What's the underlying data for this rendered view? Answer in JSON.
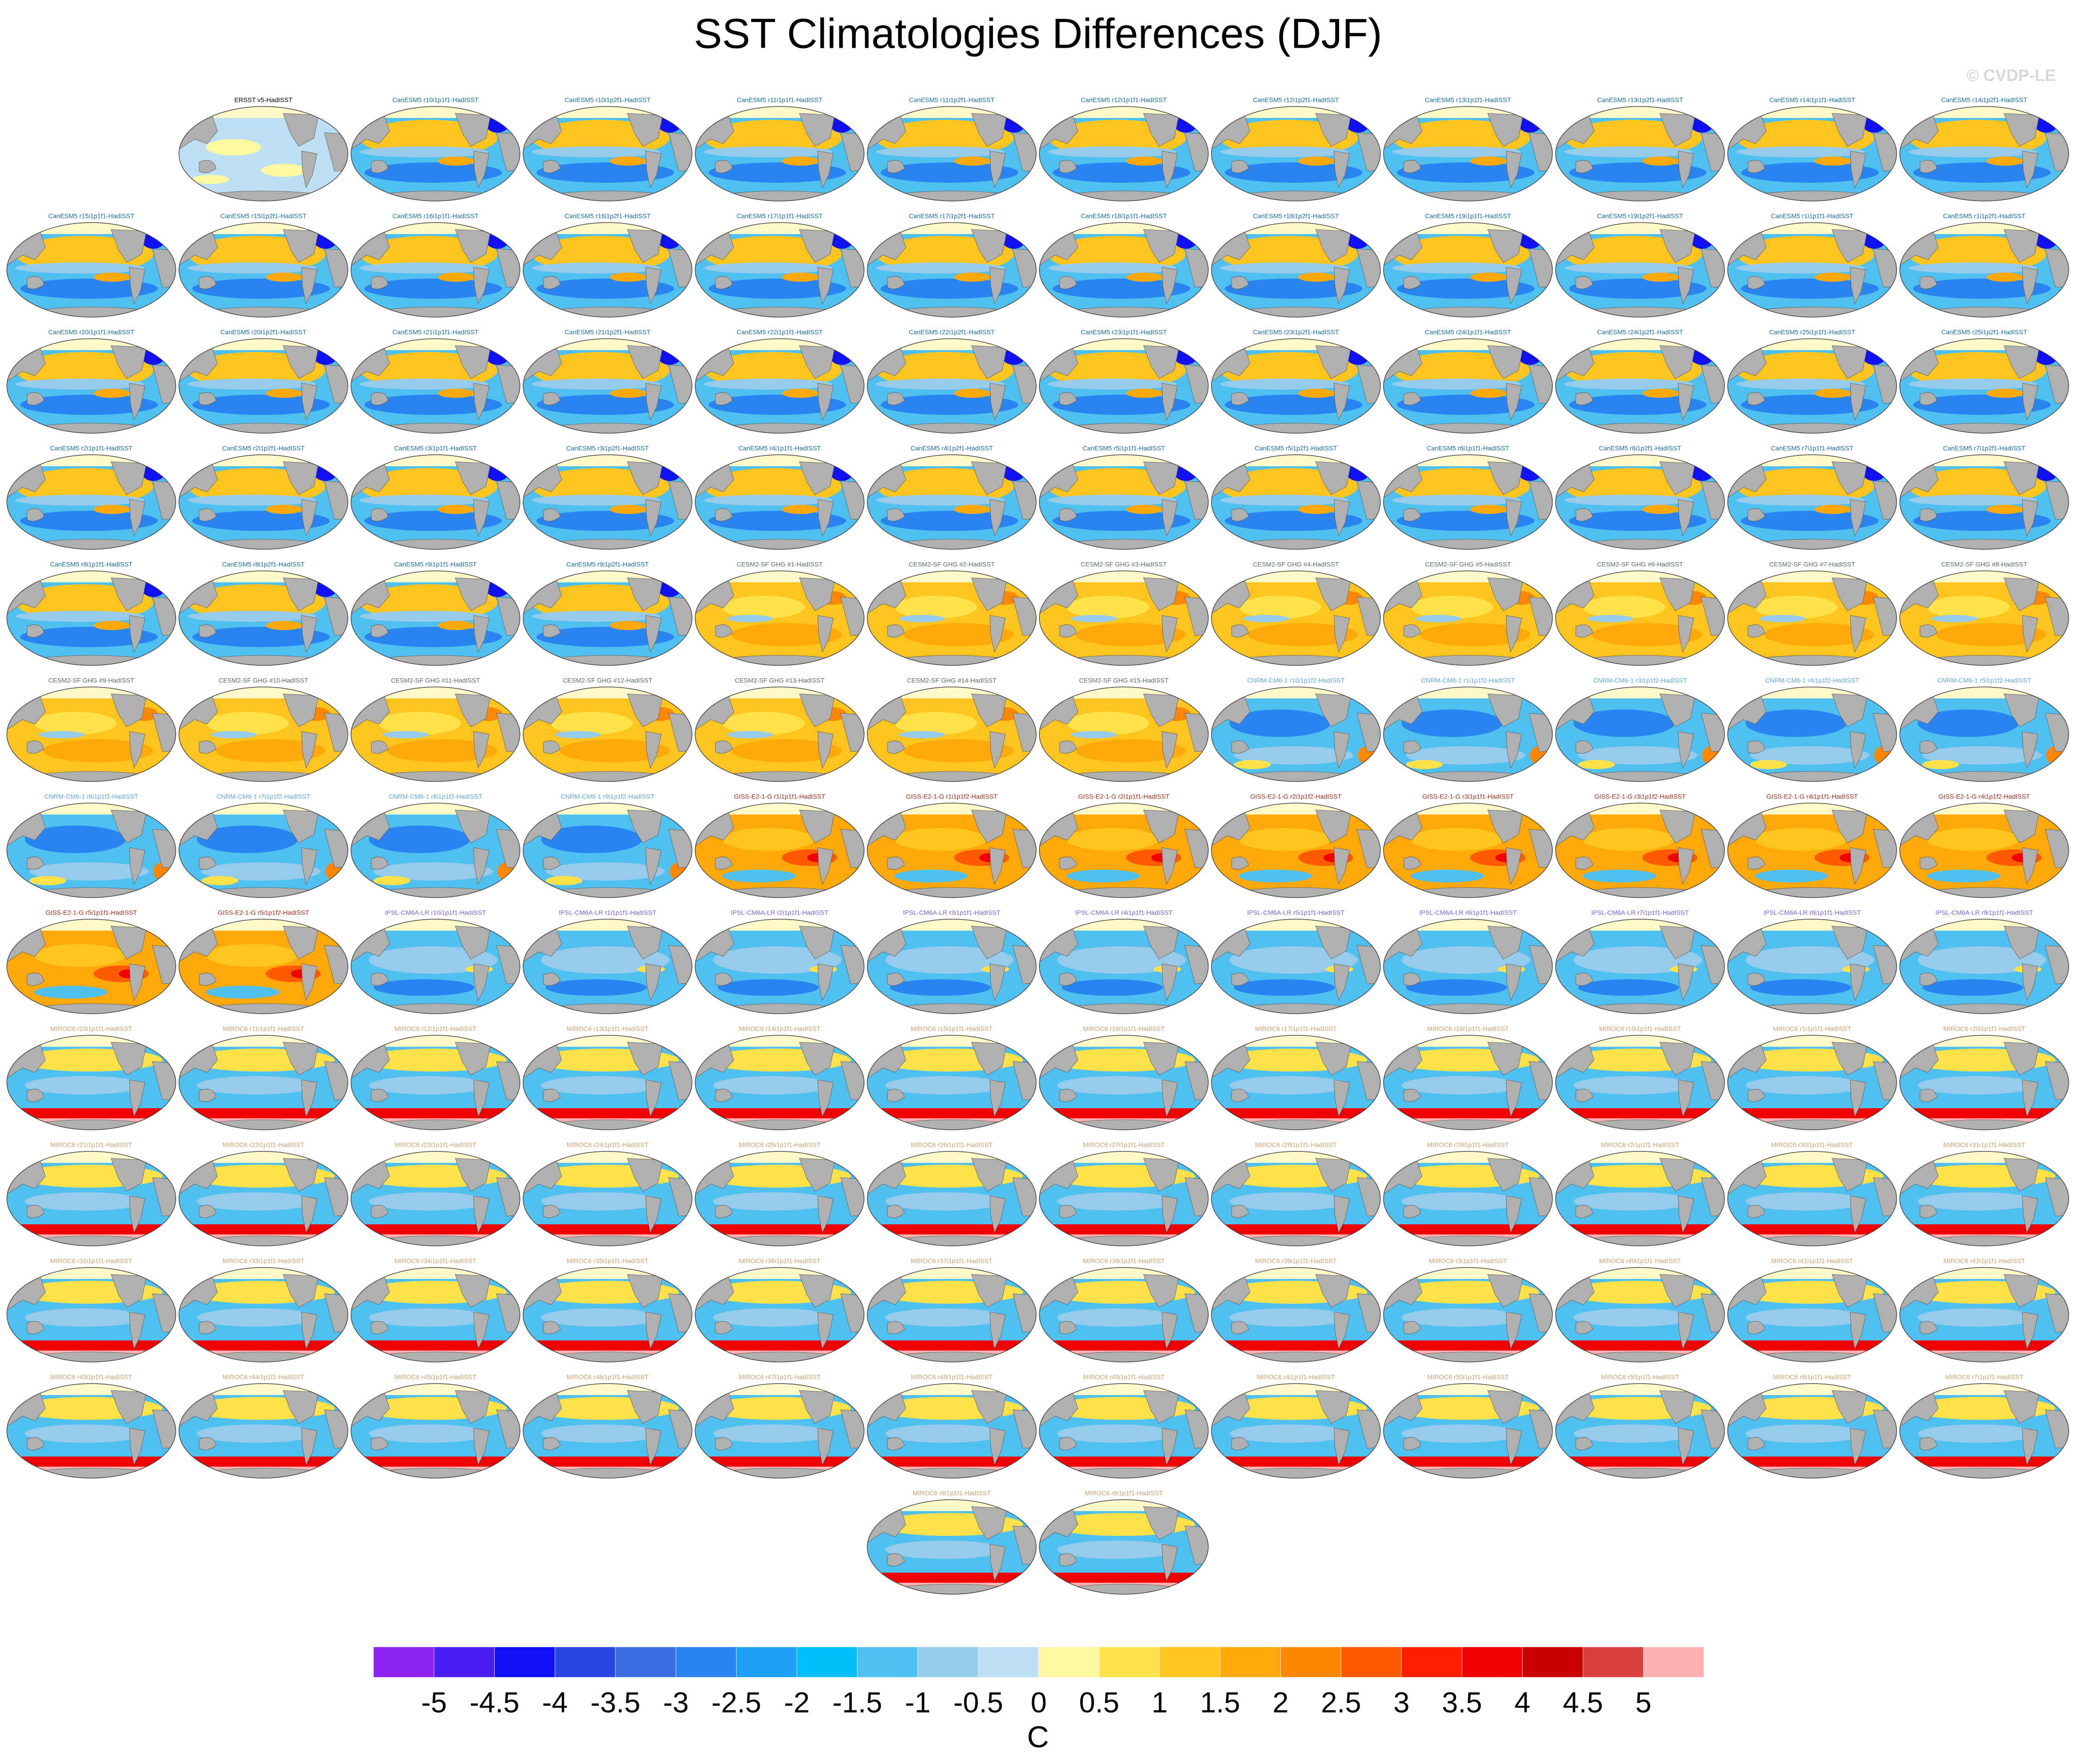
{
  "title": "SST Climatologies Differences (DJF)",
  "watermark": "© CVDP-LE",
  "panels": [
    {
      "title": "ERSST v5-HadISST",
      "color": "#000000"
    },
    {
      "title": "CanESM5 r10i1p1f1-HadISST",
      "color": "#1a6fa0"
    },
    {
      "title": "CanESM5 r10i1p2f1-HadISST",
      "color": "#1a6fa0"
    },
    {
      "title": "CanESM5 r11i1p1f1-HadISST",
      "color": "#1a6fa0"
    },
    {
      "title": "CanESM5 r11i1p2f1-HadISST",
      "color": "#1a6fa0"
    },
    {
      "title": "CanESM5 r12i1p1f1-HadISST",
      "color": "#1a6fa0"
    },
    {
      "title": "CanESM5 r12i1p2f1-HadISST",
      "color": "#1a6fa0"
    },
    {
      "title": "CanESM5 r13i1p1f1-HadISST",
      "color": "#1a6fa0"
    },
    {
      "title": "CanESM5 r13i1p2f1-HadISST",
      "color": "#1a6fa0"
    },
    {
      "title": "CanESM5 r14i1p1f1-HadISST",
      "color": "#1a6fa0"
    },
    {
      "title": "CanESM5 r14i1p2f1-HadISST",
      "color": "#1a6fa0"
    },
    {
      "title": "CanESM5 r15i1p1f1-HadISST",
      "color": "#1a6fa0"
    },
    {
      "title": "CanESM5 r15i1p2f1-HadISST",
      "color": "#1a6fa0"
    },
    {
      "title": "CanESM5 r16i1p1f1-HadISST",
      "color": "#1a6fa0"
    },
    {
      "title": "CanESM5 r16i1p2f1-HadISST",
      "color": "#1a6fa0"
    },
    {
      "title": "CanESM5 r17i1p1f1-HadISST",
      "color": "#1a6fa0"
    },
    {
      "title": "CanESM5 r17i1p2f1-HadISST",
      "color": "#1a6fa0"
    },
    {
      "title": "CanESM5 r18i1p1f1-HadISST",
      "color": "#1a6fa0"
    },
    {
      "title": "CanESM5 r18i1p2f1-HadISST",
      "color": "#1a6fa0"
    },
    {
      "title": "CanESM5 r19i1p1f1-HadISST",
      "color": "#1a6fa0"
    },
    {
      "title": "CanESM5 r19i1p2f1-HadISST",
      "color": "#1a6fa0"
    },
    {
      "title": "CanESM5 r1i1p1f1-HadISST",
      "color": "#1a6fa0"
    },
    {
      "title": "CanESM5 r1i1p2f1-HadISST",
      "color": "#1a6fa0"
    },
    {
      "title": "CanESM5 r20i1p1f1-HadISST",
      "color": "#1a6fa0"
    },
    {
      "title": "CanESM5 r20i1p2f1-HadISST",
      "color": "#1a6fa0"
    },
    {
      "title": "CanESM5 r21i1p1f1-HadISST",
      "color": "#1a6fa0"
    },
    {
      "title": "CanESM5 r21i1p2f1-HadISST",
      "color": "#1a6fa0"
    },
    {
      "title": "CanESM5 r22i1p1f1-HadISST",
      "color": "#1a6fa0"
    },
    {
      "title": "CanESM5 r22i1p2f1-HadISST",
      "color": "#1a6fa0"
    },
    {
      "title": "CanESM5 r23i1p1f1-HadISST",
      "color": "#1a6fa0"
    },
    {
      "title": "CanESM5 r23i1p2f1-HadISST",
      "color": "#1a6fa0"
    },
    {
      "title": "CanESM5 r24i1p1f1-HadISST",
      "color": "#1a6fa0"
    },
    {
      "title": "CanESM5 r24i1p2f1-HadISST",
      "color": "#1a6fa0"
    },
    {
      "title": "CanESM5 r25i1p1f1-HadISST",
      "color": "#1a6fa0"
    },
    {
      "title": "CanESM5 r25i1p2f1-HadISST",
      "color": "#1a6fa0"
    },
    {
      "title": "CanESM5 r2i1p1f1-HadISST",
      "color": "#1a6fa0"
    },
    {
      "title": "CanESM5 r2i1p2f1-HadISST",
      "color": "#1a6fa0"
    },
    {
      "title": "CanESM5 r3i1p1f1-HadISST",
      "color": "#1a6fa0"
    },
    {
      "title": "CanESM5 r3i1p2f1-HadISST",
      "color": "#1a6fa0"
    },
    {
      "title": "CanESM5 r4i1p1f1-HadISST",
      "color": "#1a6fa0"
    },
    {
      "title": "CanESM5 r4i1p2f1-HadISST",
      "color": "#1a6fa0"
    },
    {
      "title": "CanESM5 r5i1p1f1-HadISST",
      "color": "#1a6fa0"
    },
    {
      "title": "CanESM5 r5i1p2f1-HadISST",
      "color": "#1a6fa0"
    },
    {
      "title": "CanESM5 r6i1p1f1-HadISST",
      "color": "#1a6fa0"
    },
    {
      "title": "CanESM5 r6i1p2f1-HadISST",
      "color": "#1a6fa0"
    },
    {
      "title": "CanESM5 r7i1p1f1-HadISST",
      "color": "#1a6fa0"
    },
    {
      "title": "CanESM5 r7i1p2f1-HadISST",
      "color": "#1a6fa0"
    },
    {
      "title": "CanESM5 r8i1p1f1-HadISST",
      "color": "#1a6fa0"
    },
    {
      "title": "CanESM5 r8i1p2f1-HadISST",
      "color": "#1a6fa0"
    },
    {
      "title": "CanESM5 r9i1p1f1-HadISST",
      "color": "#1a6fa0"
    },
    {
      "title": "CanESM5 r9i1p2f1-HadISST",
      "color": "#1a6fa0"
    },
    {
      "title": "CESM2-SF GHG #1-HadISST",
      "color": "#5a7060"
    },
    {
      "title": "CESM2-SF GHG #2-HadISST",
      "color": "#5a7060"
    },
    {
      "title": "CESM2-SF GHG #3-HadISST",
      "color": "#5a7060"
    },
    {
      "title": "CESM2-SF GHG #4-HadISST",
      "color": "#5a7060"
    },
    {
      "title": "CESM2-SF GHG #5-HadISST",
      "color": "#5a7060"
    },
    {
      "title": "CESM2-SF GHG #6-HadISST",
      "color": "#5a7060"
    },
    {
      "title": "CESM2-SF GHG #7-HadISST",
      "color": "#5a7060"
    },
    {
      "title": "CESM2-SF GHG #8-HadISST",
      "color": "#5a7060"
    },
    {
      "title": "CESM2-SF GHG #9-HadISST",
      "color": "#5a7060"
    },
    {
      "title": "CESM2-SF GHG #10-HadISST",
      "color": "#5a7060"
    },
    {
      "title": "CESM2-SF GHG #11-HadISST",
      "color": "#5a7060"
    },
    {
      "title": "CESM2-SF GHG #12-HadISST",
      "color": "#5a7060"
    },
    {
      "title": "CESM2-SF GHG #13-HadISST",
      "color": "#5a7060"
    },
    {
      "title": "CESM2-SF GHG #14-HadISST",
      "color": "#5a7060"
    },
    {
      "title": "CESM2-SF GHG #15-HadISST",
      "color": "#5a7060"
    },
    {
      "title": "CNRM-CM6-1 r10i1p1f2-HadISST",
      "color": "#60a8d8"
    },
    {
      "title": "CNRM-CM6-1 r1i1p1f2-HadISST",
      "color": "#60a8d8"
    },
    {
      "title": "CNRM-CM6-1 r3i1p1f2-HadISST",
      "color": "#60a8d8"
    },
    {
      "title": "CNRM-CM6-1 r4i1p1f2-HadISST",
      "color": "#60a8d8"
    },
    {
      "title": "CNRM-CM6-1 r5i1p1f2-HadISST",
      "color": "#60a8d8"
    },
    {
      "title": "CNRM-CM6-1 r6i1p1f2-HadISST",
      "color": "#60a8d8"
    },
    {
      "title": "CNRM-CM6-1 r7i1p1f2-HadISST",
      "color": "#60a8d8"
    },
    {
      "title": "CNRM-CM6-1 r8i1p1f2-HadISST",
      "color": "#60a8d8"
    },
    {
      "title": "CNRM-CM6-1 r9i1p1f2-HadISST",
      "color": "#60a8d8"
    },
    {
      "title": "GISS-E2-1-G r1i1p1f1-HadISST",
      "color": "#a03020"
    },
    {
      "title": "GISS-E2-1-G r1i1p1f2-HadISST",
      "color": "#a03020"
    },
    {
      "title": "GISS-E2-1-G r2i1p1f1-HadISST",
      "color": "#a03020"
    },
    {
      "title": "GISS-E2-1-G r2i1p1f2-HadISST",
      "color": "#a03020"
    },
    {
      "title": "GISS-E2-1-G r3i1p1f1-HadISST",
      "color": "#a03020"
    },
    {
      "title": "GISS-E2-1-G r3i1p1f2-HadISST",
      "color": "#a03020"
    },
    {
      "title": "GISS-E2-1-G r4i1p1f1-HadISST",
      "color": "#a03020"
    },
    {
      "title": "GISS-E2-1-G r4i1p1f2-HadISST",
      "color": "#a03020"
    },
    {
      "title": "GISS-E2-1-G r5i1p1f1-HadISST",
      "color": "#a03020"
    },
    {
      "title": "GISS-E2-1-G r5i1p1f2-HadISST",
      "color": "#a03020"
    },
    {
      "title": "IPSL-CM6A-LR r10i1p1f1-HadISST",
      "color": "#8060d0"
    },
    {
      "title": "IPSL-CM6A-LR r1i1p1f1-HadISST",
      "color": "#8060d0"
    },
    {
      "title": "IPSL-CM6A-LR r2i1p1f1-HadISST",
      "color": "#8060d0"
    },
    {
      "title": "IPSL-CM6A-LR r3i1p1f1-HadISST",
      "color": "#8060d0"
    },
    {
      "title": "IPSL-CM6A-LR r4i1p1f1-HadISST",
      "color": "#8060d0"
    },
    {
      "title": "IPSL-CM6A-LR r5i1p1f1-HadISST",
      "color": "#8060d0"
    },
    {
      "title": "IPSL-CM6A-LR r6i1p1f1-HadISST",
      "color": "#8060d0"
    },
    {
      "title": "IPSL-CM6A-LR r7i1p1f1-HadISST",
      "color": "#8060d0"
    },
    {
      "title": "IPSL-CM6A-LR r8i1p1f1-HadISST",
      "color": "#8060d0"
    },
    {
      "title": "IPSL-CM6A-LR r9i1p1f1-HadISST",
      "color": "#8060d0"
    },
    {
      "title": "MIROC6 r10i1p1f1-HadISST",
      "color": "#d0a070"
    },
    {
      "title": "MIROC6 r11i1p1f1-HadISST",
      "color": "#d0a070"
    },
    {
      "title": "MIROC6 r12i1p1f1-HadISST",
      "color": "#d0a070"
    },
    {
      "title": "MIROC6 r13i1p1f1-HadISST",
      "color": "#d0a070"
    },
    {
      "title": "MIROC6 r14i1p1f1-HadISST",
      "color": "#d0a070"
    },
    {
      "title": "MIROC6 r15i1p1f1-HadISST",
      "color": "#d0a070"
    },
    {
      "title": "MIROC6 r16i1p1f1-HadISST",
      "color": "#d0a070"
    },
    {
      "title": "MIROC6 r17i1p1f1-HadISST",
      "color": "#d0a070"
    },
    {
      "title": "MIROC6 r18i1p1f1-HadISST",
      "color": "#d0a070"
    },
    {
      "title": "MIROC6 r19i1p1f1-HadISST",
      "color": "#d0a070"
    },
    {
      "title": "MIROC6 r1i1p1f1-HadISST",
      "color": "#d0a070"
    },
    {
      "title": "MIROC6 r20i1p1f1-HadISST",
      "color": "#d0a070"
    },
    {
      "title": "MIROC6 r21i1p1f1-HadISST",
      "color": "#d0a070"
    },
    {
      "title": "MIROC6 r22i1p1f1-HadISST",
      "color": "#d0a070"
    },
    {
      "title": "MIROC6 r23i1p1f1-HadISST",
      "color": "#d0a070"
    },
    {
      "title": "MIROC6 r24i1p1f1-HadISST",
      "color": "#d0a070"
    },
    {
      "title": "MIROC6 r25i1p1f1-HadISST",
      "color": "#d0a070"
    },
    {
      "title": "MIROC6 r26i1p1f1-HadISST",
      "color": "#d0a070"
    },
    {
      "title": "MIROC6 r27i1p1f1-HadISST",
      "color": "#d0a070"
    },
    {
      "title": "MIROC6 r28i1p1f1-HadISST",
      "color": "#d0a070"
    },
    {
      "title": "MIROC6 r29i1p1f1-HadISST",
      "color": "#d0a070"
    },
    {
      "title": "MIROC6 r2i1p1f1-HadISST",
      "color": "#d0a070"
    },
    {
      "title": "MIROC6 r30i1p1f1-HadISST",
      "color": "#d0a070"
    },
    {
      "title": "MIROC6 r31i1p1f1-HadISST",
      "color": "#d0a070"
    },
    {
      "title": "MIROC6 r32i1p1f1-HadISST",
      "color": "#d0a070"
    },
    {
      "title": "MIROC6 r33i1p1f1-HadISST",
      "color": "#d0a070"
    },
    {
      "title": "MIROC6 r34i1p1f1-HadISST",
      "color": "#d0a070"
    },
    {
      "title": "MIROC6 r35i1p1f1-HadISST",
      "color": "#d0a070"
    },
    {
      "title": "MIROC6 r36i1p1f1-HadISST",
      "color": "#d0a070"
    },
    {
      "title": "MIROC6 r37i1p1f1-HadISST",
      "color": "#d0a070"
    },
    {
      "title": "MIROC6 r38i1p1f1-HadISST",
      "color": "#d0a070"
    },
    {
      "title": "MIROC6 r39i1p1f1-HadISST",
      "color": "#d0a070"
    },
    {
      "title": "MIROC6 r3i1p1f1-HadISST",
      "color": "#d0a070"
    },
    {
      "title": "MIROC6 r40i1p1f1-HadISST",
      "color": "#d0a070"
    },
    {
      "title": "MIROC6 r41i1p1f1-HadISST",
      "color": "#d0a070"
    },
    {
      "title": "MIROC6 r42i1p1f1-HadISST",
      "color": "#d0a070"
    },
    {
      "title": "MIROC6 r43i1p1f1-HadISST",
      "color": "#d0a070"
    },
    {
      "title": "MIROC6 r44i1p1f1-HadISST",
      "color": "#d0a070"
    },
    {
      "title": "MIROC6 r45i1p1f1-HadISST",
      "color": "#d0a070"
    },
    {
      "title": "MIROC6 r46i1p1f1-HadISST",
      "color": "#d0a070"
    },
    {
      "title": "MIROC6 r47i1p1f1-HadISST",
      "color": "#d0a070"
    },
    {
      "title": "MIROC6 r48i1p1f1-HadISST",
      "color": "#d0a070"
    },
    {
      "title": "MIROC6 r49i1p1f1-HadISST",
      "color": "#d0a070"
    },
    {
      "title": "MIROC6 r4i1p1f1-HadISST",
      "color": "#d0a070"
    },
    {
      "title": "MIROC6 r50i1p1f1-HadISST",
      "color": "#d0a070"
    },
    {
      "title": "MIROC6 r5i1p1f1-HadISST",
      "color": "#d0a070"
    },
    {
      "title": "MIROC6 r6i1p1f1-HadISST",
      "color": "#d0a070"
    },
    {
      "title": "MIROC6 r7i1p1f1-HadISST",
      "color": "#d0a070"
    },
    {
      "title": "MIROC6 r8i1p1f1-HadISST",
      "color": "#d0a070"
    },
    {
      "title": "MIROC6 r9i1p1f1-HadISST",
      "color": "#d0a070"
    }
  ],
  "colorbar": {
    "colors": [
      "#8b22f0",
      "#4a1df0",
      "#1010f5",
      "#2a45e0",
      "#3a6be0",
      "#2a84f0",
      "#1ea0f8",
      "#00bff8",
      "#4fc0f0",
      "#96cbec",
      "#bde0f4",
      "#fff8a0",
      "#ffe24a",
      "#ffc51e",
      "#ffa80a",
      "#ff8700",
      "#ff5a00",
      "#ff2000",
      "#f00000",
      "#c80000",
      "#d84040",
      "#ffb0b0"
    ],
    "ticks": [
      -5,
      -4.5,
      -4,
      -3.5,
      -3,
      -2.5,
      -2,
      -1.5,
      -1,
      -0.5,
      0,
      0.5,
      1,
      1.5,
      2,
      2.5,
      3,
      3.5,
      4,
      4.5,
      5
    ],
    "label": "C"
  }
}
